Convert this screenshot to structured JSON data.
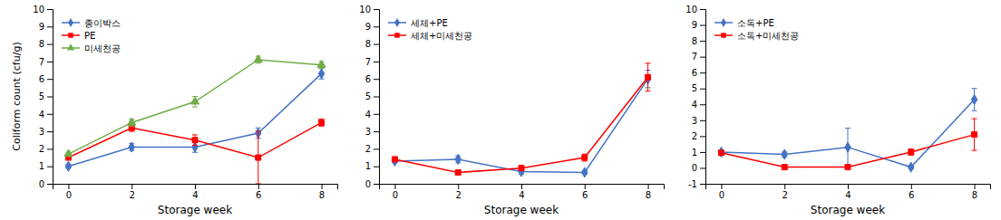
{
  "chart_data": [
    {
      "type": "line",
      "xlabel": "Storage week",
      "ylabel": "Coliform count (cfu/g)",
      "x": [
        0,
        2,
        4,
        6,
        8
      ],
      "xlim": [
        -0.5,
        8.5
      ],
      "xticks": [
        0,
        2,
        4,
        6,
        8
      ],
      "ylim": [
        0,
        10
      ],
      "yticks": [
        0,
        1,
        2,
        3,
        4,
        5,
        6,
        7,
        8,
        9,
        10
      ],
      "grid": false,
      "legend": "upper left",
      "series": [
        {
          "name": "종이박스",
          "color": "#4472C4",
          "marker": "diamond",
          "values": [
            1.0,
            2.1,
            2.1,
            2.9,
            6.3
          ],
          "errors": [
            0.1,
            0.2,
            0.3,
            0.3,
            0.3
          ]
        },
        {
          "name": "PE",
          "color": "#FF0000",
          "marker": "square",
          "values": [
            1.5,
            3.2,
            2.5,
            1.5,
            3.5
          ],
          "errors": [
            0.1,
            0.2,
            0.3,
            1.5,
            0.2
          ]
        },
        {
          "name": "미세천공",
          "color": "#70AD47",
          "marker": "triangle",
          "values": [
            1.7,
            3.5,
            4.7,
            7.1,
            6.8
          ],
          "errors": [
            0.1,
            0.2,
            0.3,
            0.2,
            0.2
          ]
        }
      ]
    },
    {
      "type": "line",
      "xlabel": "Storage week",
      "x": [
        0,
        2,
        4,
        6,
        8
      ],
      "xlim": [
        -0.5,
        8.5
      ],
      "xticks": [
        0,
        2,
        4,
        6,
        8
      ],
      "ylim": [
        0,
        10
      ],
      "yticks": [
        0,
        1,
        2,
        3,
        4,
        5,
        6,
        7,
        8,
        9,
        10
      ],
      "grid": false,
      "legend": "upper left",
      "series": [
        {
          "name": "세체+PE",
          "color": "#4472C4",
          "marker": "diamond",
          "values": [
            1.3,
            1.4,
            0.7,
            0.65,
            6.0
          ],
          "errors": [
            0.1,
            0.2,
            0.15,
            0.1,
            0.5
          ]
        },
        {
          "name": "세체+미세천공",
          "color": "#FF0000",
          "marker": "square",
          "values": [
            1.4,
            0.65,
            0.9,
            1.5,
            6.1
          ],
          "errors": [
            0.1,
            0.1,
            0.15,
            0.2,
            0.8
          ]
        }
      ]
    },
    {
      "type": "line",
      "xlabel": "Storage week",
      "x": [
        0,
        2,
        4,
        6,
        8
      ],
      "xlim": [
        -0.5,
        8.5
      ],
      "xticks": [
        0,
        2,
        4,
        6,
        8
      ],
      "ylim": [
        -1,
        10
      ],
      "yticks": [
        -1,
        0,
        1,
        2,
        3,
        4,
        5,
        6,
        7,
        8,
        9,
        10
      ],
      "grid": false,
      "legend": "upper left",
      "series": [
        {
          "name": "소독+PE",
          "color": "#4472C4",
          "marker": "diamond",
          "values": [
            1.0,
            0.85,
            1.3,
            0.05,
            4.3
          ],
          "errors": [
            0.05,
            0.15,
            1.2,
            0.1,
            0.7
          ]
        },
        {
          "name": "소독+미세천공",
          "color": "#FF0000",
          "marker": "square",
          "values": [
            0.95,
            0.05,
            0.05,
            1.0,
            2.1
          ],
          "errors": [
            0.05,
            0.05,
            0.1,
            0.2,
            1.0
          ]
        }
      ]
    }
  ]
}
